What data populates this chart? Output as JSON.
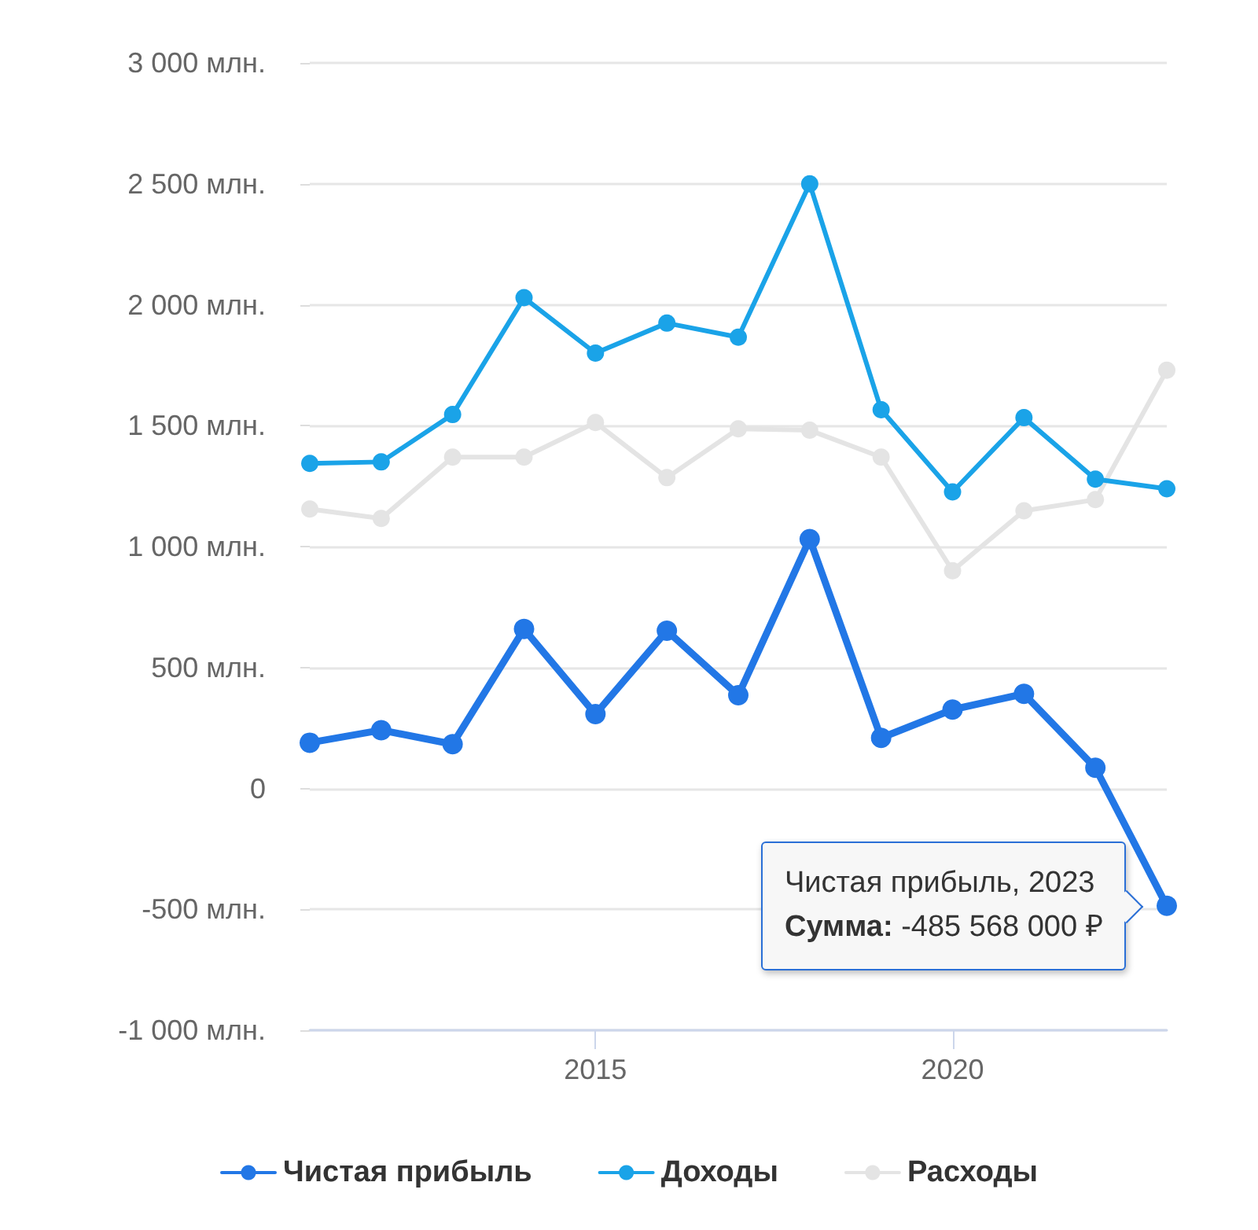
{
  "chart_data": {
    "type": "line",
    "x": [
      2011,
      2012,
      2013,
      2014,
      2015,
      2016,
      2017,
      2018,
      2019,
      2020,
      2021,
      2022,
      2023
    ],
    "series": [
      {
        "name": "Чистая прибыль",
        "color": "#2277e6",
        "values": [
          189,
          241,
          183,
          659,
          307,
          652,
          385,
          1031,
          209,
          326,
          391,
          85,
          -485.568
        ]
      },
      {
        "name": "Доходы",
        "color": "#1aa3e8",
        "values": [
          1344,
          1350,
          1546,
          2029,
          1800,
          1924,
          1866,
          2500,
          1566,
          1226,
          1533,
          1279,
          1239
        ]
      },
      {
        "name": "Расходы",
        "color": "#e4e4e4",
        "values": [
          1155,
          1116,
          1370,
          1370,
          1513,
          1285,
          1487,
          1481,
          1370,
          900,
          1148,
          1194,
          1729
        ]
      }
    ],
    "xlim": [
      2011,
      2023
    ],
    "xticks": [
      2015,
      2020
    ],
    "ylim": [
      -1000,
      3000
    ],
    "yticks": [
      {
        "value": -1000,
        "label": "-1 000 млн."
      },
      {
        "value": -500,
        "label": "-500 млн."
      },
      0,
      {
        "value": 500,
        "label": "500 млн."
      },
      {
        "value": 1000,
        "label": "1 000 млн."
      },
      {
        "value": 1500,
        "label": "1 500 млн."
      },
      {
        "value": 2000,
        "label": "2 000 млн."
      },
      {
        "value": 2500,
        "label": "2 500 млн."
      },
      {
        "value": 3000,
        "label": "3 000 млн."
      }
    ],
    "annotations": [
      {
        "text": "Чистая прибыль, 2023\nСумма: -485 568 000 ₽",
        "x": 2023,
        "y": -485.568
      }
    ],
    "grid": "y",
    "legend": "bottom",
    "marker": "circle",
    "line_style": "solid"
  }
}
